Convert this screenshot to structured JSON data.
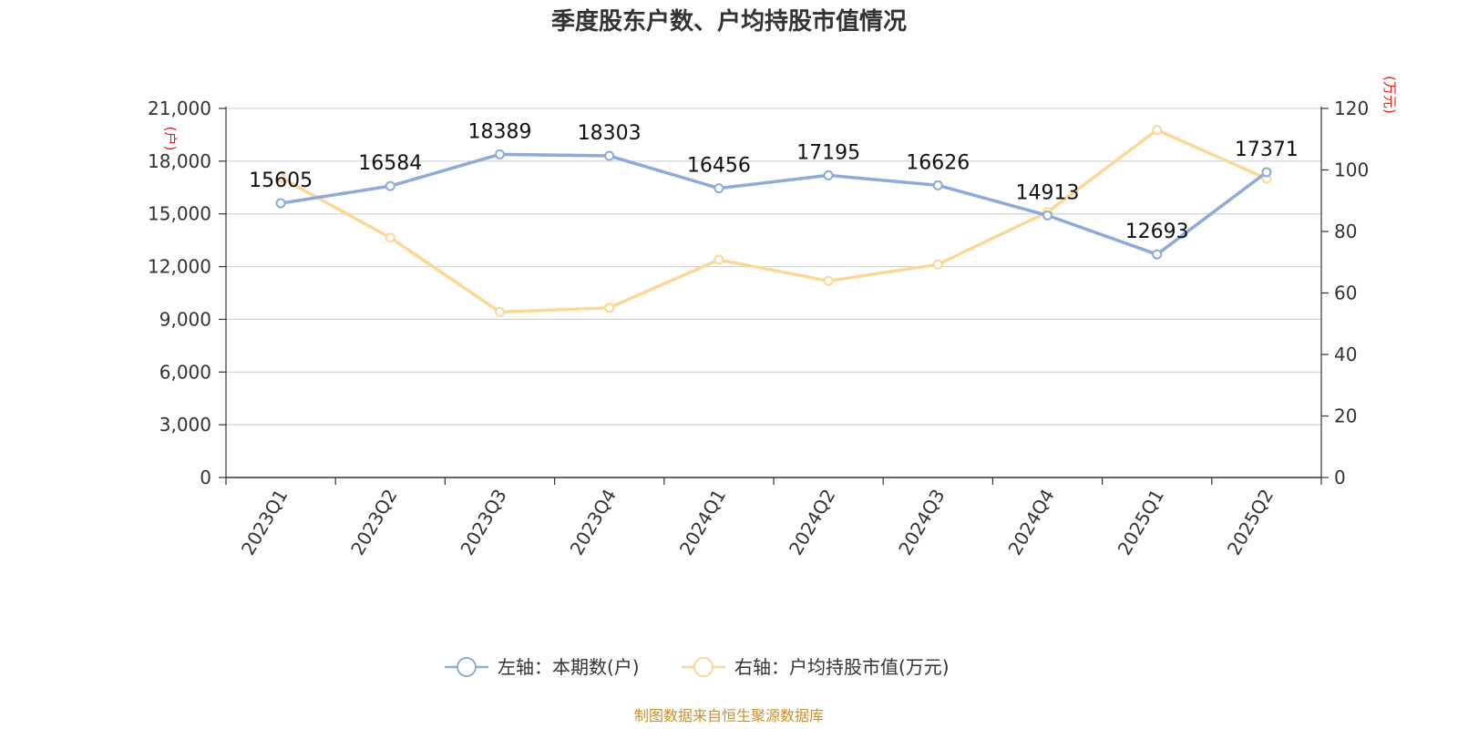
{
  "chart_data": {
    "type": "line",
    "title": "季度股东户数、户均持股市值情况",
    "categories": [
      "2023Q1",
      "2023Q2",
      "2023Q3",
      "2023Q4",
      "2024Q1",
      "2024Q2",
      "2024Q3",
      "2024Q4",
      "2025Q1",
      "2025Q2"
    ],
    "series": [
      {
        "name": "左轴：本期数(户)",
        "axis": "left",
        "color": "#8eaad9",
        "values": [
          15605,
          16584,
          18389,
          18303,
          16456,
          17195,
          16626,
          14913,
          12693,
          17371
        ],
        "labels": [
          "15605",
          "16584",
          "18389",
          "18303",
          "16456",
          "17195",
          "16626",
          "14913",
          "12693",
          "17371"
        ]
      },
      {
        "name": "右轴：户均持股市值(万元)",
        "axis": "right",
        "color": "#fcd897",
        "values": [
          97.5,
          78.0,
          53.8,
          55.2,
          70.8,
          63.9,
          69.3,
          86.3,
          113.0,
          97.2
        ]
      }
    ],
    "y_left": {
      "unit": "(户)",
      "min": 0,
      "max": 21000,
      "ticks": [
        0,
        3000,
        6000,
        9000,
        12000,
        15000,
        18000,
        21000
      ],
      "tick_labels": [
        "0",
        "3,000",
        "6,000",
        "9,000",
        "12,000",
        "15,000",
        "18,000",
        "21,000"
      ]
    },
    "y_right": {
      "unit": "(万元)",
      "min": 0,
      "max": 120,
      "ticks": [
        0,
        20,
        40,
        60,
        80,
        100,
        120
      ],
      "tick_labels": [
        "0",
        "20",
        "40",
        "60",
        "80",
        "100",
        "120"
      ]
    },
    "grid": true,
    "legend_position": "bottom-center",
    "source": "制图数据来自恒生聚源数据库"
  }
}
